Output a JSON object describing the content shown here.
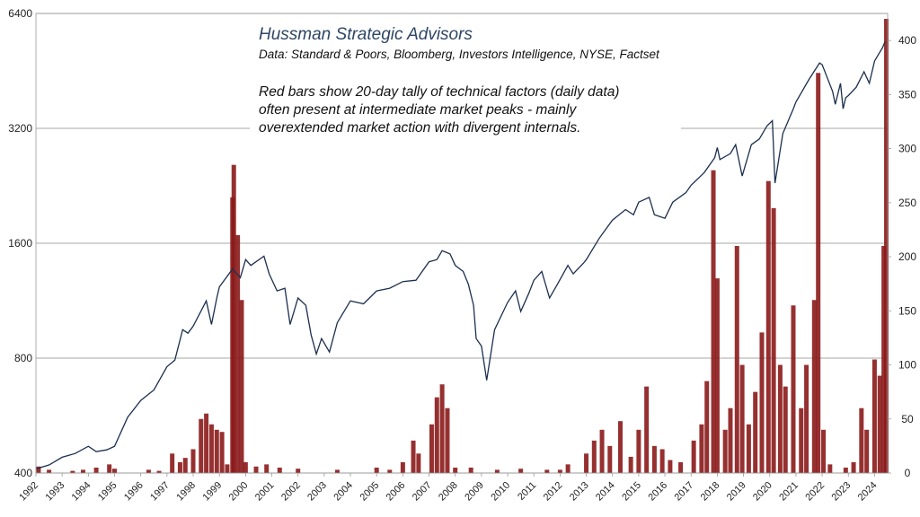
{
  "chart_data": {
    "type": "line",
    "title": "Hussman Strategic Advisors",
    "subtitle": "Data: Standard & Poors, Bloomberg, Investors Intelligence,  NYSE, Factset",
    "annotation": [
      "Red bars show 20-day tally of technical factors (daily data)",
      "often present at intermediate market peaks - mainly",
      "overextended market action with divergent internals."
    ],
    "x_ticks": [
      "1992",
      "1993",
      "1994",
      "1995",
      "1996",
      "1997",
      "1998",
      "1999",
      "2000",
      "2001",
      "2002",
      "2003",
      "2004",
      "2005",
      "2006",
      "2007",
      "2008",
      "2009",
      "2010",
      "2011",
      "2012",
      "2013",
      "2014",
      "2015",
      "2016",
      "2017",
      "2018",
      "2019",
      "2020",
      "2021",
      "2022",
      "2023",
      "2024"
    ],
    "xlim": [
      1992,
      2024.5
    ],
    "left_axis": {
      "scale": "log",
      "range": [
        400,
        6400
      ],
      "ticks": [
        "400",
        "800",
        "1600",
        "3200",
        "6400"
      ]
    },
    "right_axis": {
      "scale": "linear",
      "range": [
        0,
        425
      ],
      "ticks": [
        "0",
        "50",
        "100",
        "150",
        "200",
        "250",
        "300",
        "350",
        "400"
      ]
    },
    "grid": "horizontal lines at left-axis ticks",
    "colors": {
      "line": "#1b2f4e",
      "bars": "#8b1a1a",
      "grid": "#8a8a8a",
      "title": "#2d4664"
    },
    "series": [
      {
        "axis": "left",
        "style": "line",
        "points": [
          [
            1992.0,
            410
          ],
          [
            1992.5,
            420
          ],
          [
            1993.0,
            440
          ],
          [
            1993.5,
            450
          ],
          [
            1994.0,
            470
          ],
          [
            1994.3,
            455
          ],
          [
            1994.7,
            460
          ],
          [
            1995.0,
            470
          ],
          [
            1995.5,
            560
          ],
          [
            1996.0,
            620
          ],
          [
            1996.5,
            660
          ],
          [
            1997.0,
            760
          ],
          [
            1997.3,
            790
          ],
          [
            1997.6,
            950
          ],
          [
            1997.8,
            930
          ],
          [
            1998.0,
            970
          ],
          [
            1998.5,
            1130
          ],
          [
            1998.7,
            980
          ],
          [
            1998.9,
            1150
          ],
          [
            1999.0,
            1230
          ],
          [
            1999.5,
            1370
          ],
          [
            1999.8,
            1300
          ],
          [
            2000.0,
            1450
          ],
          [
            2000.2,
            1400
          ],
          [
            2000.7,
            1480
          ],
          [
            2000.9,
            1330
          ],
          [
            2001.2,
            1200
          ],
          [
            2001.5,
            1220
          ],
          [
            2001.7,
            980
          ],
          [
            2002.0,
            1150
          ],
          [
            2002.3,
            1100
          ],
          [
            2002.5,
            920
          ],
          [
            2002.7,
            820
          ],
          [
            2002.9,
            900
          ],
          [
            2003.2,
            830
          ],
          [
            2003.5,
            990
          ],
          [
            2004.0,
            1130
          ],
          [
            2004.5,
            1110
          ],
          [
            2005.0,
            1200
          ],
          [
            2005.5,
            1220
          ],
          [
            2006.0,
            1270
          ],
          [
            2006.5,
            1280
          ],
          [
            2007.0,
            1430
          ],
          [
            2007.3,
            1450
          ],
          [
            2007.5,
            1530
          ],
          [
            2007.8,
            1500
          ],
          [
            2008.0,
            1400
          ],
          [
            2008.3,
            1350
          ],
          [
            2008.5,
            1250
          ],
          [
            2008.7,
            1100
          ],
          [
            2008.8,
            900
          ],
          [
            2009.0,
            860
          ],
          [
            2009.2,
            700
          ],
          [
            2009.5,
            950
          ],
          [
            2010.0,
            1120
          ],
          [
            2010.3,
            1200
          ],
          [
            2010.5,
            1060
          ],
          [
            2010.8,
            1180
          ],
          [
            2011.0,
            1280
          ],
          [
            2011.3,
            1350
          ],
          [
            2011.6,
            1150
          ],
          [
            2011.9,
            1250
          ],
          [
            2012.3,
            1400
          ],
          [
            2012.5,
            1330
          ],
          [
            2012.9,
            1420
          ],
          [
            2013.0,
            1450
          ],
          [
            2013.5,
            1650
          ],
          [
            2014.0,
            1840
          ],
          [
            2014.5,
            1960
          ],
          [
            2014.8,
            1900
          ],
          [
            2015.0,
            2050
          ],
          [
            2015.4,
            2110
          ],
          [
            2015.6,
            1900
          ],
          [
            2016.0,
            1860
          ],
          [
            2016.3,
            2050
          ],
          [
            2016.8,
            2170
          ],
          [
            2017.0,
            2270
          ],
          [
            2017.5,
            2450
          ],
          [
            2017.9,
            2680
          ],
          [
            2018.0,
            2850
          ],
          [
            2018.1,
            2650
          ],
          [
            2018.5,
            2750
          ],
          [
            2018.7,
            2900
          ],
          [
            2018.95,
            2400
          ],
          [
            2019.3,
            2900
          ],
          [
            2019.6,
            3000
          ],
          [
            2019.9,
            3250
          ],
          [
            2020.1,
            3350
          ],
          [
            2020.2,
            2300
          ],
          [
            2020.5,
            3100
          ],
          [
            2020.9,
            3600
          ],
          [
            2021.0,
            3750
          ],
          [
            2021.5,
            4300
          ],
          [
            2021.9,
            4750
          ],
          [
            2022.0,
            4700
          ],
          [
            2022.4,
            4000
          ],
          [
            2022.5,
            3700
          ],
          [
            2022.7,
            4200
          ],
          [
            2022.8,
            3600
          ],
          [
            2022.9,
            3850
          ],
          [
            2023.0,
            3900
          ],
          [
            2023.3,
            4100
          ],
          [
            2023.6,
            4500
          ],
          [
            2023.8,
            4200
          ],
          [
            2024.0,
            4800
          ],
          [
            2024.15,
            5000
          ],
          [
            2024.3,
            5200
          ],
          [
            2024.4,
            5400
          ]
        ]
      },
      {
        "axis": "right",
        "style": "bar",
        "points": [
          [
            1992.1,
            6
          ],
          [
            1992.5,
            3
          ],
          [
            1993.4,
            2
          ],
          [
            1993.8,
            3
          ],
          [
            1994.3,
            5
          ],
          [
            1994.8,
            8
          ],
          [
            1995.0,
            4
          ],
          [
            1996.3,
            3
          ],
          [
            1996.7,
            2
          ],
          [
            1997.2,
            18
          ],
          [
            1997.5,
            10
          ],
          [
            1997.7,
            14
          ],
          [
            1998.0,
            22
          ],
          [
            1998.3,
            50
          ],
          [
            1998.5,
            55
          ],
          [
            1998.7,
            45
          ],
          [
            1998.9,
            40
          ],
          [
            1999.1,
            38
          ],
          [
            1999.3,
            8
          ],
          [
            1999.5,
            255
          ],
          [
            1999.55,
            285
          ],
          [
            1999.7,
            220
          ],
          [
            1999.85,
            160
          ],
          [
            2000.0,
            10
          ],
          [
            2000.4,
            6
          ],
          [
            2000.8,
            8
          ],
          [
            2001.3,
            5
          ],
          [
            2002.0,
            4
          ],
          [
            2003.5,
            3
          ],
          [
            2005.0,
            5
          ],
          [
            2005.5,
            3
          ],
          [
            2006.0,
            10
          ],
          [
            2006.4,
            30
          ],
          [
            2006.6,
            18
          ],
          [
            2007.1,
            45
          ],
          [
            2007.3,
            70
          ],
          [
            2007.5,
            82
          ],
          [
            2007.7,
            60
          ],
          [
            2008.0,
            5
          ],
          [
            2008.6,
            5
          ],
          [
            2009.6,
            3
          ],
          [
            2010.5,
            4
          ],
          [
            2011.5,
            3
          ],
          [
            2012.0,
            3
          ],
          [
            2012.3,
            8
          ],
          [
            2013.0,
            18
          ],
          [
            2013.3,
            30
          ],
          [
            2013.6,
            40
          ],
          [
            2013.9,
            25
          ],
          [
            2014.3,
            48
          ],
          [
            2014.7,
            15
          ],
          [
            2015.0,
            40
          ],
          [
            2015.3,
            80
          ],
          [
            2015.6,
            25
          ],
          [
            2015.9,
            22
          ],
          [
            2016.2,
            12
          ],
          [
            2016.6,
            10
          ],
          [
            2017.1,
            30
          ],
          [
            2017.4,
            45
          ],
          [
            2017.6,
            85
          ],
          [
            2017.85,
            280
          ],
          [
            2018.0,
            180
          ],
          [
            2018.3,
            40
          ],
          [
            2018.5,
            60
          ],
          [
            2018.75,
            210
          ],
          [
            2018.95,
            100
          ],
          [
            2019.2,
            45
          ],
          [
            2019.45,
            75
          ],
          [
            2019.7,
            130
          ],
          [
            2019.95,
            270
          ],
          [
            2020.15,
            245
          ],
          [
            2020.4,
            100
          ],
          [
            2020.6,
            80
          ],
          [
            2020.9,
            155
          ],
          [
            2021.2,
            60
          ],
          [
            2021.4,
            100
          ],
          [
            2021.7,
            160
          ],
          [
            2021.85,
            370
          ],
          [
            2022.05,
            40
          ],
          [
            2022.3,
            8
          ],
          [
            2022.9,
            5
          ],
          [
            2023.2,
            10
          ],
          [
            2023.5,
            60
          ],
          [
            2023.7,
            40
          ],
          [
            2024.0,
            105
          ],
          [
            2024.2,
            90
          ],
          [
            2024.35,
            210
          ],
          [
            2024.45,
            420
          ]
        ]
      }
    ]
  }
}
